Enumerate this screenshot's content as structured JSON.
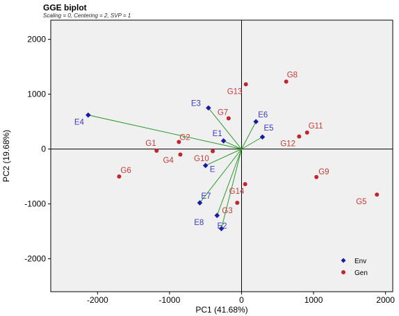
{
  "chart_data": {
    "type": "scatter",
    "title": "GGE biplot",
    "subtitle": "Scaling = 0, Centering = 2, SVP = 1",
    "xlabel": "PC1 (41.68%)",
    "ylabel": "PC2 (19.68%)",
    "xlim": [
      -2650,
      2100
    ],
    "ylim": [
      -2600,
      2350
    ],
    "x_ticks": [
      -2000,
      -1000,
      0,
      1000,
      2000
    ],
    "y_ticks": [
      -2000,
      -1000,
      0,
      1000,
      2000
    ],
    "grid": false,
    "legend_position": "bottom-right",
    "colors": {
      "env": "#1a1aa6",
      "gen": "#c0262d",
      "vector": "#2a9a2a",
      "plot_bg": "#f0f0f0"
    },
    "series": [
      {
        "name": "Env",
        "marker": "diamond",
        "points": [
          {
            "label": "E1",
            "x": -250,
            "y": 150
          },
          {
            "label": "E",
            "x": -500,
            "y": -300
          },
          {
            "label": "E2",
            "x": -280,
            "y": -1450
          },
          {
            "label": "E3",
            "x": -460,
            "y": 750
          },
          {
            "label": "E4",
            "x": -2130,
            "y": 620
          },
          {
            "label": "E5",
            "x": 290,
            "y": 220
          },
          {
            "label": "E6",
            "x": 200,
            "y": 500
          },
          {
            "label": "E7",
            "x": -580,
            "y": -980
          },
          {
            "label": "E8",
            "x": -340,
            "y": -1210
          }
        ]
      },
      {
        "name": "Gen",
        "marker": "circle",
        "points": [
          {
            "label": "G1",
            "x": -1180,
            "y": -30
          },
          {
            "label": "G2",
            "x": -870,
            "y": 130
          },
          {
            "label": "G3",
            "x": -60,
            "y": -980
          },
          {
            "label": "G4",
            "x": -850,
            "y": -100
          },
          {
            "label": "G5",
            "x": 1880,
            "y": -830
          },
          {
            "label": "G6",
            "x": -1700,
            "y": -500
          },
          {
            "label": "G7",
            "x": -180,
            "y": 560
          },
          {
            "label": "G8",
            "x": 620,
            "y": 1230
          },
          {
            "label": "G9",
            "x": 1040,
            "y": -510
          },
          {
            "label": "G10",
            "x": -400,
            "y": -40
          },
          {
            "label": "G11",
            "x": 910,
            "y": 300
          },
          {
            "label": "G12",
            "x": 800,
            "y": 230
          },
          {
            "label": "G13",
            "x": 60,
            "y": 1180
          },
          {
            "label": "G14",
            "x": 50,
            "y": -640
          }
        ]
      }
    ],
    "vectors_from_origin_to": [
      "E1",
      "E",
      "E2",
      "E3",
      "E4",
      "E5",
      "E6",
      "E7",
      "E8"
    ]
  }
}
